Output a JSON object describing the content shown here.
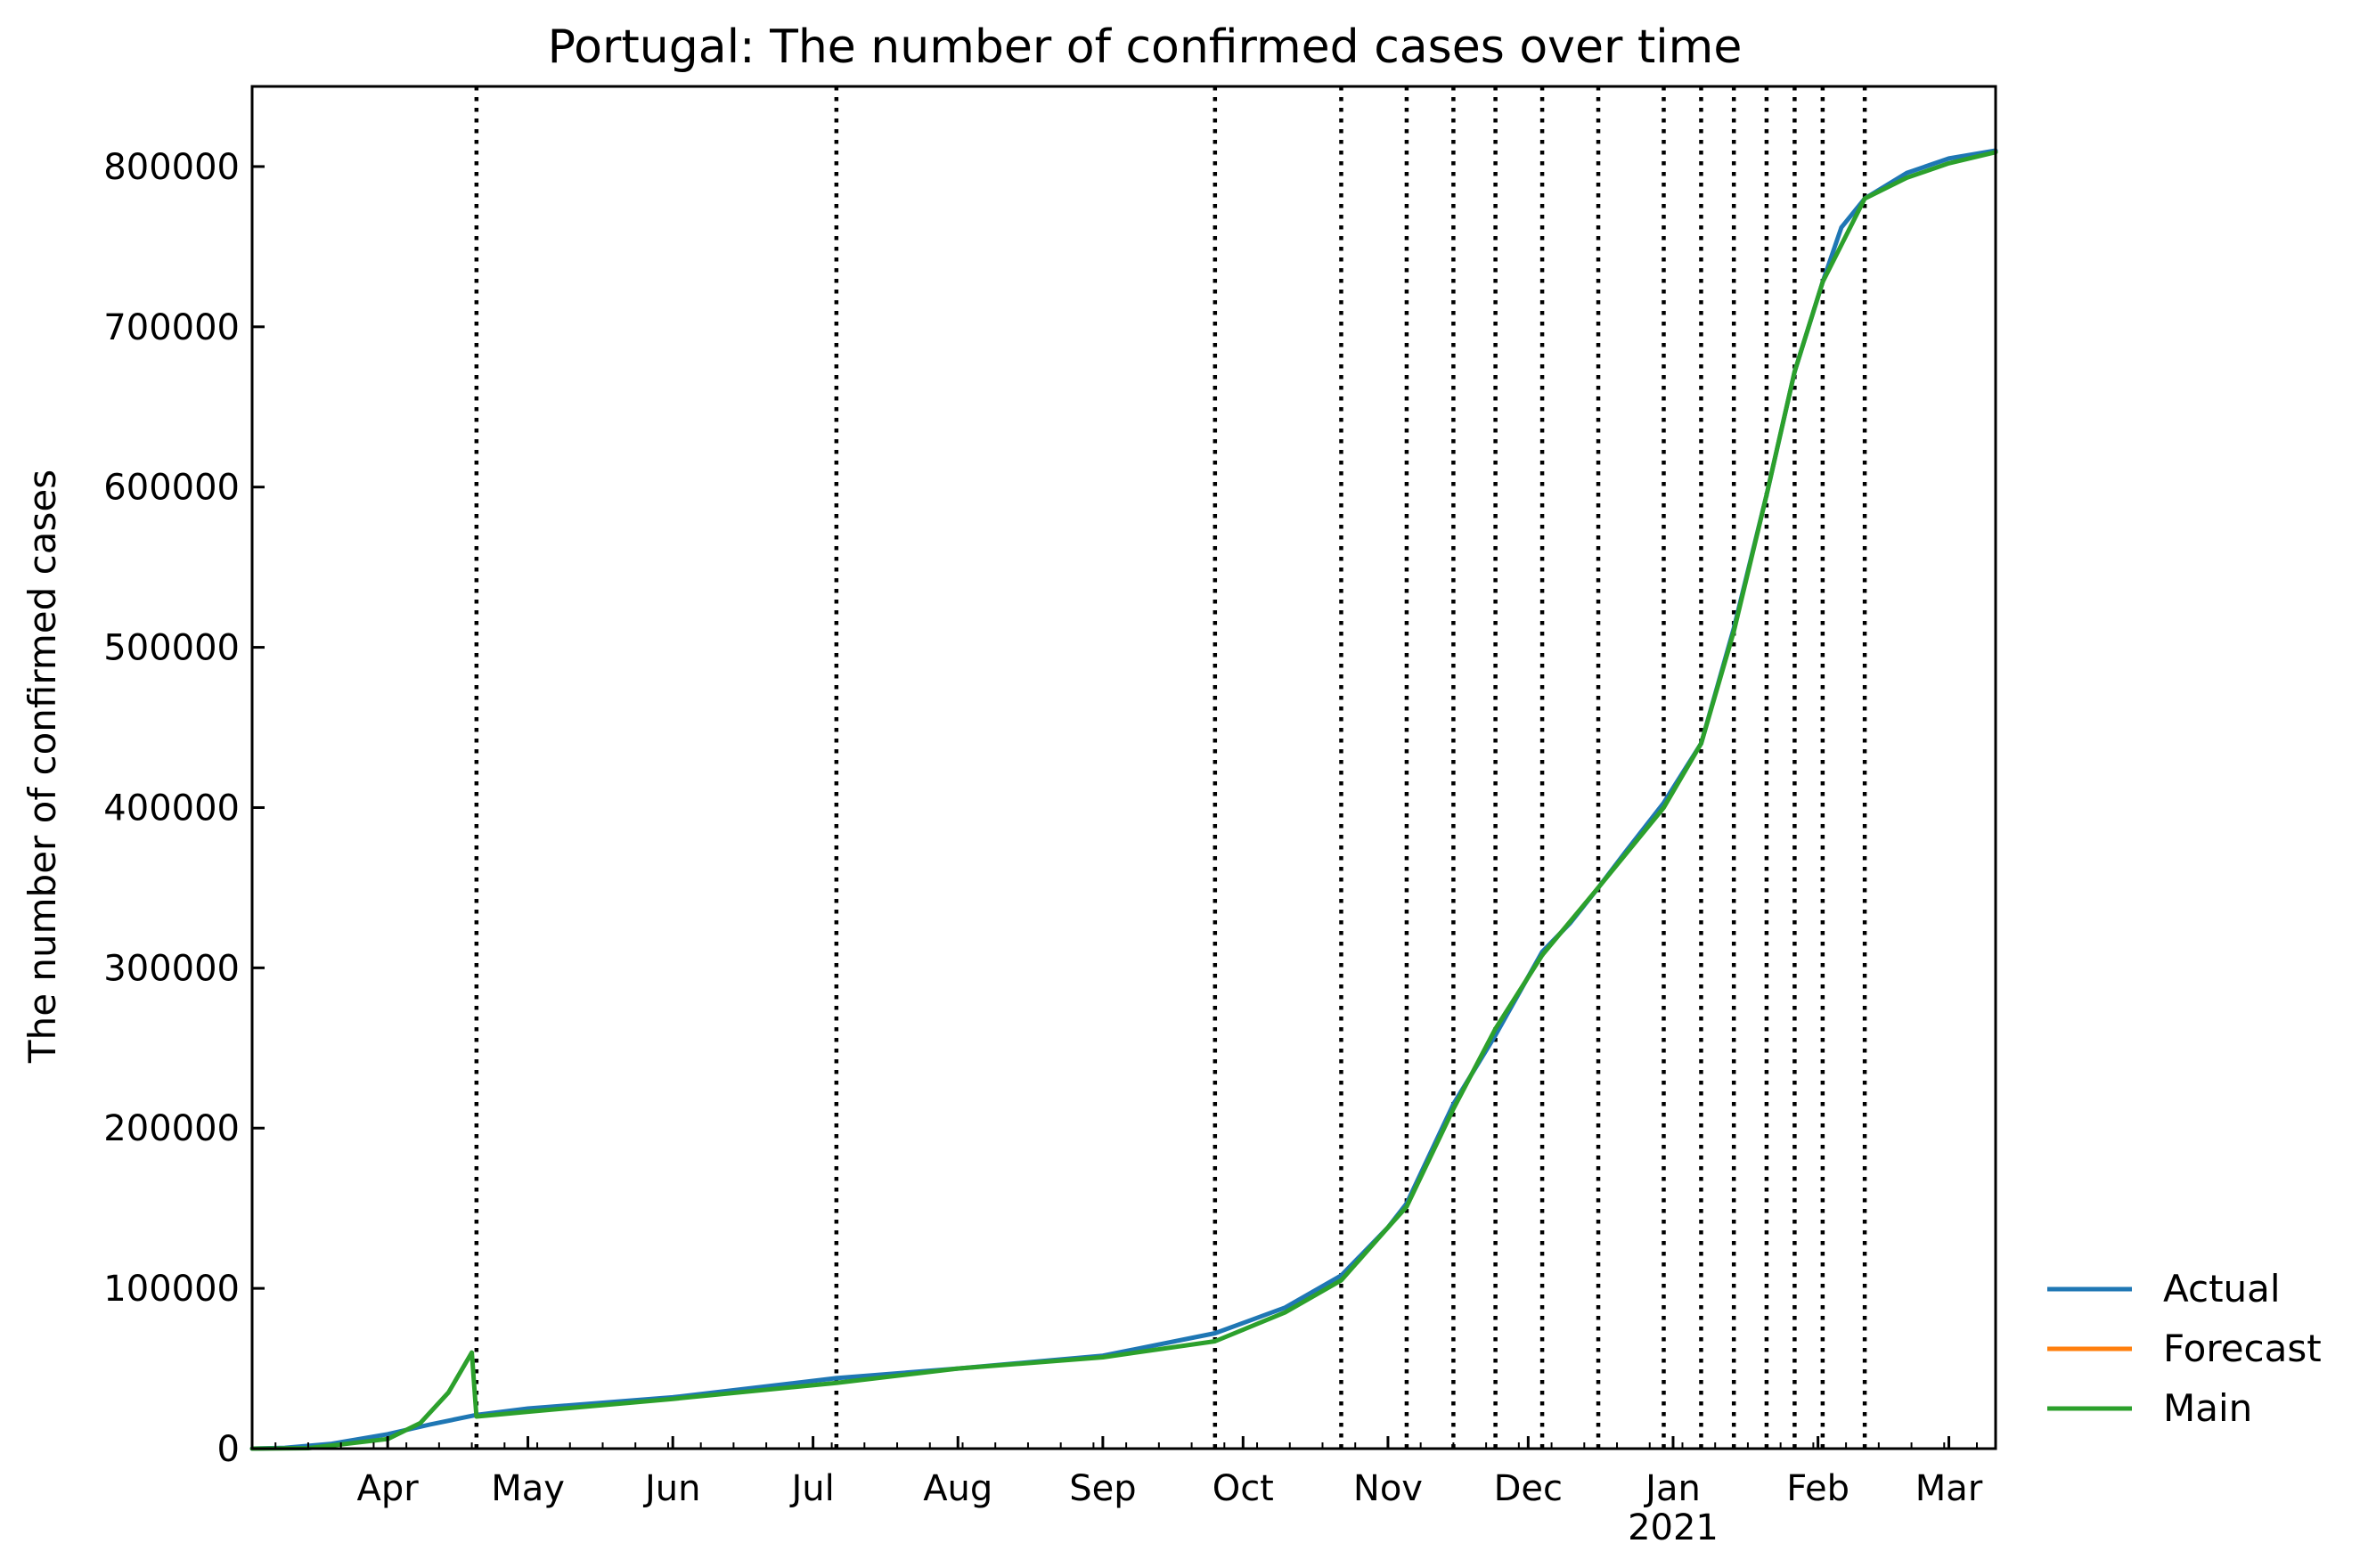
{
  "chart_data": {
    "type": "line",
    "title": "Portugal: The number of confirmed cases over time",
    "xlabel": "",
    "ylabel": "The number of confirmed cases",
    "xlim": [
      "2020-03-03",
      "2021-03-11"
    ],
    "ylim": [
      0,
      850000
    ],
    "y_ticks": [
      0,
      100000,
      200000,
      300000,
      400000,
      500000,
      600000,
      700000,
      800000
    ],
    "y_tick_labels": [
      "0",
      "100000",
      "200000",
      "300000",
      "400000",
      "500000",
      "600000",
      "700000",
      "800000"
    ],
    "x_ticks": [
      {
        "date": "2020-04-01",
        "label": "Apr"
      },
      {
        "date": "2020-05-01",
        "label": "May"
      },
      {
        "date": "2020-06-01",
        "label": "Jun"
      },
      {
        "date": "2020-07-01",
        "label": "Jul"
      },
      {
        "date": "2020-08-01",
        "label": "Aug"
      },
      {
        "date": "2020-09-01",
        "label": "Sep"
      },
      {
        "date": "2020-10-01",
        "label": "Oct"
      },
      {
        "date": "2020-11-01",
        "label": "Nov"
      },
      {
        "date": "2020-12-01",
        "label": "Dec"
      },
      {
        "date": "2021-01-01",
        "label": "Jan"
      },
      {
        "date": "2021-02-01",
        "label": "Feb"
      },
      {
        "date": "2021-03-01",
        "label": "Mar"
      }
    ],
    "year_label": {
      "date": "2021-01-01",
      "label": "2021"
    },
    "grid": false,
    "legend": "outside-bottom-right",
    "change_points": [
      "2020-04-20",
      "2020-07-06",
      "2020-09-25",
      "2020-10-22",
      "2020-11-05",
      "2020-11-15",
      "2020-11-24",
      "2020-12-04",
      "2020-12-16",
      "2020-12-30",
      "2021-01-07",
      "2021-01-14",
      "2021-01-21",
      "2021-01-27",
      "2021-02-02",
      "2021-02-11"
    ],
    "series": [
      {
        "name": "Actual",
        "color": "#1f77b4",
        "x": [
          "2020-03-03",
          "2020-03-10",
          "2020-03-20",
          "2020-04-01",
          "2020-04-10",
          "2020-04-20",
          "2020-05-01",
          "2020-06-01",
          "2020-07-06",
          "2020-08-01",
          "2020-09-01",
          "2020-09-25",
          "2020-10-10",
          "2020-10-22",
          "2020-11-01",
          "2020-11-05",
          "2020-11-15",
          "2020-11-24",
          "2020-12-04",
          "2020-12-10",
          "2020-12-16",
          "2020-12-22",
          "2020-12-30",
          "2021-01-07",
          "2021-01-14",
          "2021-01-21",
          "2021-01-27",
          "2021-02-02",
          "2021-02-06",
          "2021-02-11",
          "2021-02-20",
          "2021-03-01",
          "2021-03-11"
        ],
        "y": [
          0,
          500,
          3000,
          9000,
          15000,
          21000,
          25000,
          32000,
          44000,
          50000,
          58000,
          72000,
          88000,
          108000,
          138000,
          153000,
          215000,
          258000,
          310000,
          328000,
          350000,
          373000,
          403000,
          440000,
          512000,
          595000,
          672000,
          728000,
          762000,
          780000,
          796000,
          805000,
          810000
        ]
      },
      {
        "name": "Forecast",
        "color": "#ff7f0e",
        "x": [],
        "y": []
      },
      {
        "name": "Main",
        "color": "#2ca02c",
        "x": [
          "2020-03-03",
          "2020-03-15",
          "2020-04-01",
          "2020-04-08",
          "2020-04-14",
          "2020-04-19",
          "2020-04-20",
          "2020-05-01",
          "2020-06-01",
          "2020-07-06",
          "2020-08-01",
          "2020-09-01",
          "2020-09-25",
          "2020-10-10",
          "2020-10-22",
          "2020-11-01",
          "2020-11-05",
          "2020-11-15",
          "2020-11-24",
          "2020-12-04",
          "2020-12-16",
          "2020-12-30",
          "2021-01-07",
          "2021-01-14",
          "2021-01-21",
          "2021-01-27",
          "2021-02-02",
          "2021-02-11",
          "2021-02-20",
          "2021-03-01",
          "2021-03-11"
        ],
        "y": [
          0,
          300,
          6000,
          16000,
          35000,
          60000,
          20000,
          23000,
          31000,
          41000,
          50000,
          57000,
          67000,
          85000,
          105000,
          138000,
          151000,
          212000,
          262000,
          308000,
          350000,
          400000,
          440000,
          510000,
          595000,
          672000,
          728000,
          780000,
          793000,
          802000,
          809000
        ]
      }
    ]
  }
}
